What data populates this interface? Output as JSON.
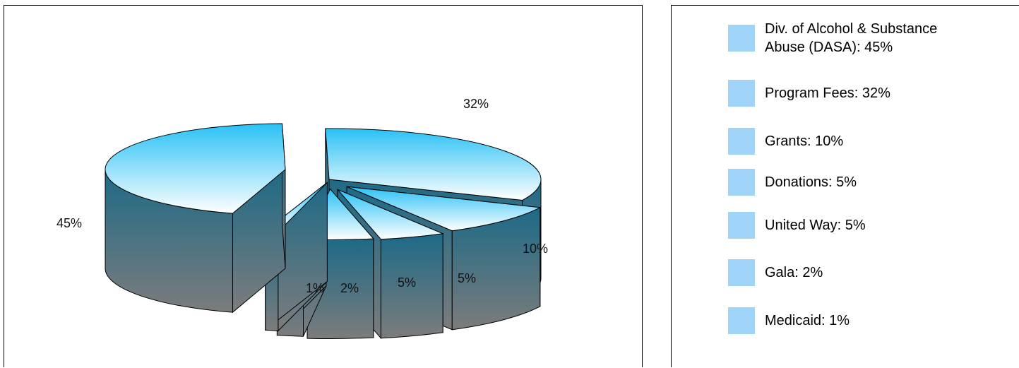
{
  "chart_data": {
    "type": "pie",
    "title": "",
    "slices": [
      {
        "label": "Div. of Alcohol & Substance Abuse (DASA)",
        "value": 45,
        "display": "45%"
      },
      {
        "label": "Program Fees",
        "value": 32,
        "display": "32%"
      },
      {
        "label": "Grants",
        "value": 10,
        "display": "10%"
      },
      {
        "label": "Donations",
        "value": 5,
        "display": "5%"
      },
      {
        "label": "United Way",
        "value": 5,
        "display": "5%"
      },
      {
        "label": "Gala",
        "value": 2,
        "display": "2%"
      },
      {
        "label": "Medicaid",
        "value": 1,
        "display": "1%"
      }
    ],
    "style": "3d-exploded",
    "legend_position": "right"
  },
  "legend": {
    "items": [
      {
        "text": "Div. of Alcohol & Substance\nAbuse (DASA):  45%"
      },
      {
        "text": "Program Fees:  32%"
      },
      {
        "text": "Grants:  10%"
      },
      {
        "text": "Donations:  5%"
      },
      {
        "text": "United Way:  5%"
      },
      {
        "text": "Gala:  2%"
      },
      {
        "text": "Medicaid:  1%"
      }
    ]
  },
  "colors": {
    "top_light": "#ffffff",
    "top_dark": "#29c1f5",
    "side_top": "#1d6a87",
    "side_bottom": "#7c7c7c",
    "legend_swatch": "#9fd3f7",
    "outline": "#000000"
  }
}
